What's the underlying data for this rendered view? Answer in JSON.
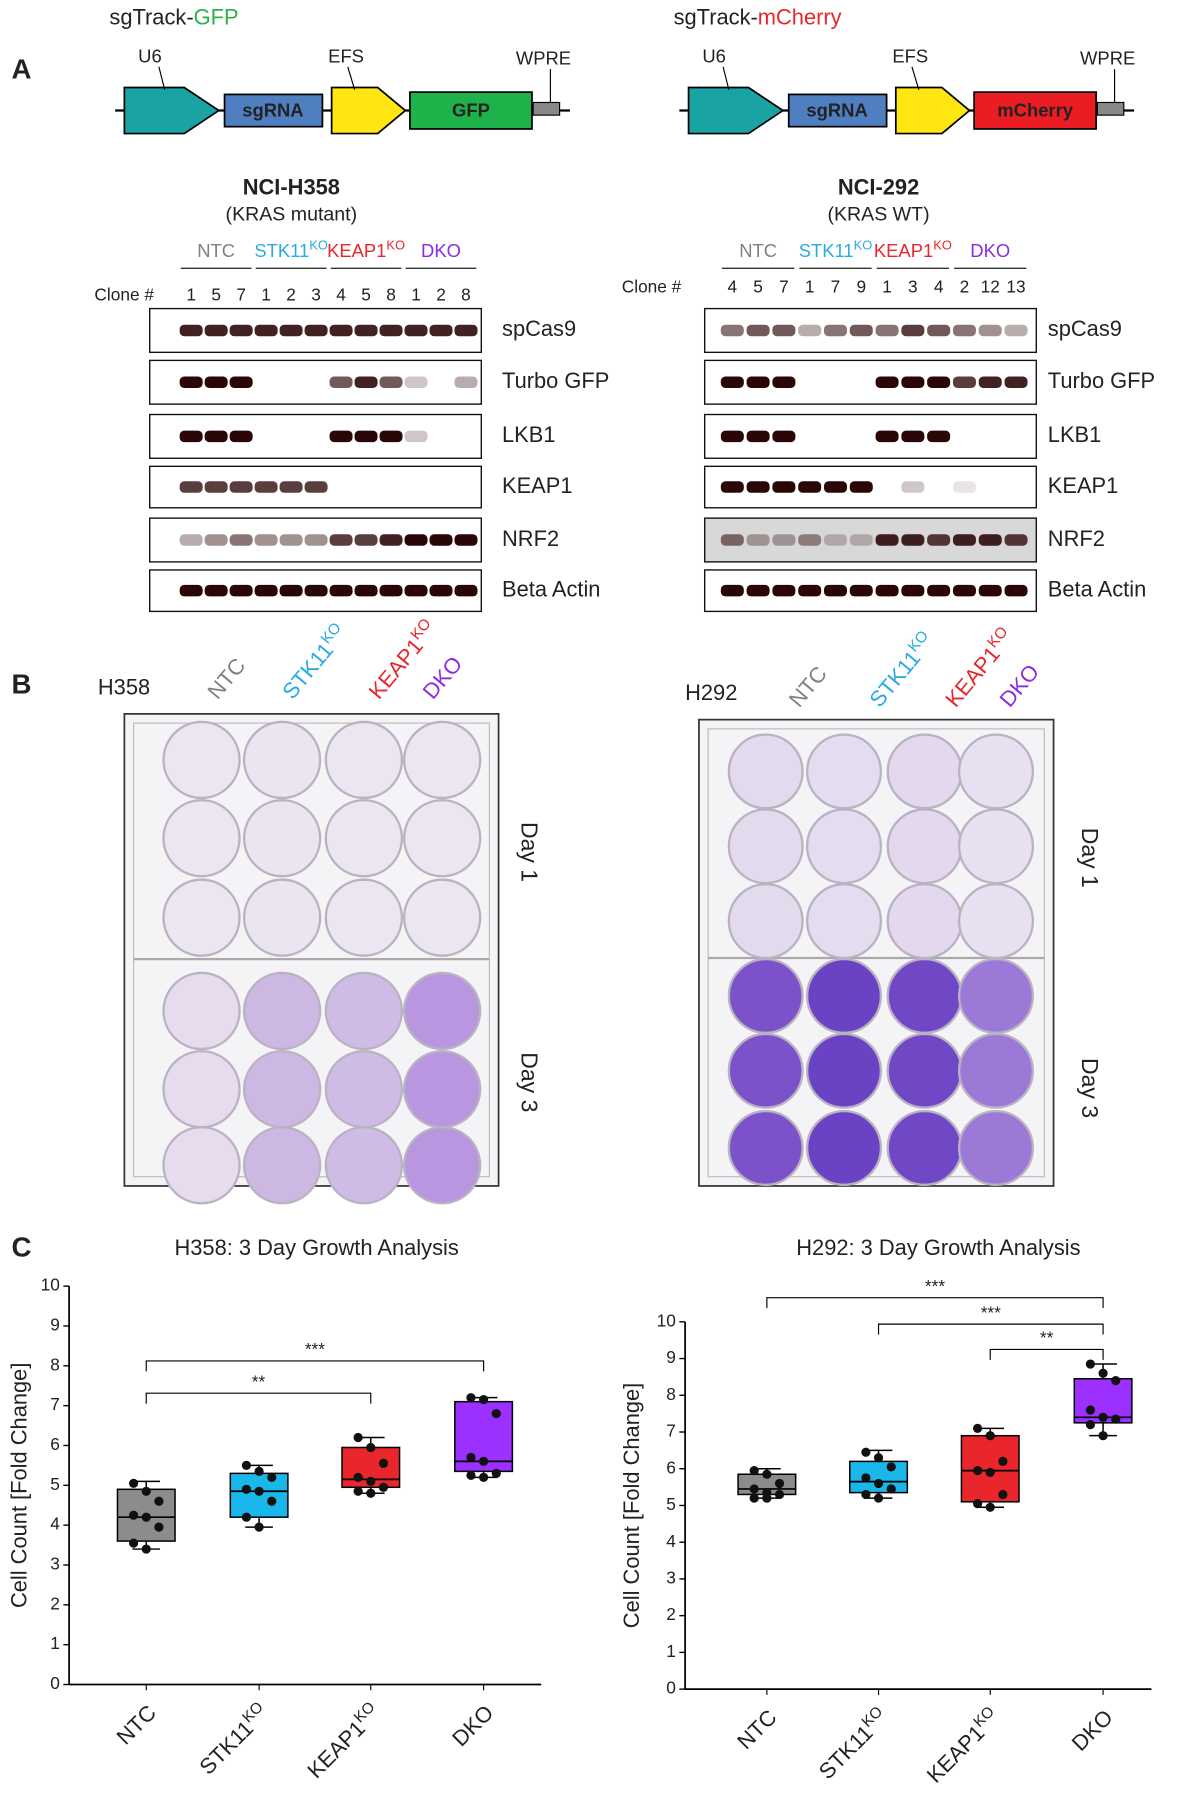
{
  "panel_labels": [
    "A",
    "B",
    "C"
  ],
  "constructs": [
    {
      "title": "sgTrack-",
      "title_highlight": "GFP",
      "highlight_color": "#2bb24c",
      "elements": [
        "U6",
        "sgRNA",
        "EFS",
        "GFP",
        "WPRE"
      ],
      "reporter_color": "#1db34a"
    },
    {
      "title": "sgTrack-",
      "title_highlight": "mCherry",
      "highlight_color": "#e8262b",
      "elements": [
        "U6",
        "sgRNA",
        "EFS",
        "mCherry",
        "WPRE"
      ],
      "reporter_color": "#ec1c24"
    }
  ],
  "blots": [
    {
      "cell_line": "NCI-H358",
      "subtitle": "(KRAS mutant)",
      "clone_header": "Clone #",
      "groups": [
        {
          "name": "NTC",
          "color": "#808080",
          "clones": [
            "1",
            "5",
            "7"
          ]
        },
        {
          "name": "STK11",
          "sup": "KO",
          "color": "#29abe2",
          "clones": [
            "1",
            "2",
            "3"
          ]
        },
        {
          "name": "KEAP1",
          "sup": "KO",
          "color": "#e8262b",
          "clones": [
            "4",
            "5",
            "8"
          ]
        },
        {
          "name": "DKO",
          "color": "#8b2be2",
          "clones": [
            "1",
            "2",
            "8"
          ]
        }
      ],
      "bands": [
        "spCas9",
        "Turbo GFP",
        "LKB1",
        "KEAP1",
        "NRF2",
        "Beta Actin"
      ]
    },
    {
      "cell_line": "NCI-292",
      "subtitle": "(KRAS WT)",
      "clone_header": "Clone #",
      "groups": [
        {
          "name": "NTC",
          "color": "#808080",
          "clones": [
            "4",
            "5",
            "7"
          ]
        },
        {
          "name": "STK11",
          "sup": "KO",
          "color": "#29abe2",
          "clones": [
            "1",
            "7",
            "9"
          ]
        },
        {
          "name": "KEAP1",
          "sup": "KO",
          "color": "#e8262b",
          "clones": [
            "1",
            "3",
            "4"
          ]
        },
        {
          "name": "DKO",
          "color": "#8b2be2",
          "clones": [
            "2",
            "12",
            "13"
          ]
        }
      ],
      "bands": [
        "spCas9",
        "Turbo GFP",
        "LKB1",
        "KEAP1",
        "NRF2",
        "Beta Actin"
      ]
    }
  ],
  "plates": [
    {
      "cell_line": "H358",
      "groups": [
        {
          "name": "NTC",
          "color": "#808080"
        },
        {
          "name": "STK11",
          "sup": "KO",
          "color": "#29abe2"
        },
        {
          "name": "KEAP1",
          "sup": "KO",
          "color": "#e8262b"
        },
        {
          "name": "DKO",
          "color": "#8b2be2"
        }
      ],
      "days": [
        "Day 1",
        "Day 3"
      ]
    },
    {
      "cell_line": "H292",
      "groups": [
        {
          "name": "NTC",
          "color": "#808080"
        },
        {
          "name": "STK11",
          "sup": "KO",
          "color": "#29abe2"
        },
        {
          "name": "KEAP1",
          "sup": "KO",
          "color": "#e8262b"
        },
        {
          "name": "DKO",
          "color": "#8b2be2"
        }
      ],
      "days": [
        "Day 1",
        "Day 3"
      ]
    }
  ],
  "chart_data": [
    {
      "type": "box",
      "title": "H358: 3 Day Growth Analysis",
      "y_label": "Cell Count [Fold Change]",
      "categories": [
        "NTC",
        "STK11",
        "KEAP1",
        "DKO"
      ],
      "superscripts": {
        "1": "KO",
        "2": "KO"
      },
      "ylim": [
        0,
        10
      ],
      "yticks": [
        0,
        1,
        2,
        3,
        4,
        5,
        6,
        7,
        8,
        9,
        10
      ],
      "boxes": [
        {
          "color": "#8c8c8c",
          "min": 3.4,
          "q1": 3.6,
          "median": 4.2,
          "q3": 4.9,
          "max": 5.1,
          "points": [
            5.05,
            4.85,
            4.6,
            4.25,
            4.2,
            3.95,
            3.55,
            3.4
          ]
        },
        {
          "color": "#1ab7ea",
          "min": 3.95,
          "q1": 4.2,
          "median": 4.85,
          "q3": 5.3,
          "max": 5.5,
          "points": [
            5.5,
            5.35,
            5.2,
            4.9,
            4.85,
            4.6,
            4.2,
            3.95
          ]
        },
        {
          "color": "#e8262b",
          "min": 4.8,
          "q1": 4.95,
          "median": 5.15,
          "q3": 5.95,
          "max": 6.2,
          "points": [
            6.2,
            5.95,
            5.55,
            5.2,
            5.1,
            4.95,
            4.85,
            4.8
          ]
        },
        {
          "color": "#9b30ff",
          "min": 5.2,
          "q1": 5.35,
          "median": 5.6,
          "q3": 7.1,
          "max": 7.2,
          "points": [
            7.2,
            7.15,
            6.8,
            5.7,
            5.6,
            5.3,
            5.25,
            5.2
          ]
        }
      ],
      "significance": [
        {
          "from": 0,
          "to": 2,
          "label": "**"
        },
        {
          "from": 0,
          "to": 3,
          "label": "***"
        }
      ]
    },
    {
      "type": "box",
      "title": "H292: 3 Day Growth Analysis",
      "y_label": "Cell Count [Fold Change]",
      "categories": [
        "NTC",
        "STK11",
        "KEAP1",
        "DKO"
      ],
      "superscripts": {
        "1": "KO",
        "2": "KO"
      },
      "ylim": [
        0,
        10
      ],
      "yticks": [
        0,
        1,
        2,
        3,
        4,
        5,
        6,
        7,
        8,
        9,
        10
      ],
      "boxes": [
        {
          "color": "#8c8c8c",
          "min": 5.2,
          "q1": 5.3,
          "median": 5.45,
          "q3": 5.85,
          "max": 6.0,
          "points": [
            5.95,
            5.85,
            5.6,
            5.45,
            5.35,
            5.3,
            5.2,
            5.2
          ]
        },
        {
          "color": "#1ab7ea",
          "min": 5.2,
          "q1": 5.35,
          "median": 5.65,
          "q3": 6.2,
          "max": 6.5,
          "points": [
            6.45,
            6.3,
            6.05,
            5.75,
            5.6,
            5.45,
            5.3,
            5.2
          ]
        },
        {
          "color": "#e8262b",
          "min": 4.95,
          "q1": 5.1,
          "median": 5.95,
          "q3": 6.9,
          "max": 7.1,
          "points": [
            7.1,
            6.9,
            6.2,
            5.95,
            5.9,
            5.3,
            5.05,
            4.95
          ]
        },
        {
          "color": "#9b30ff",
          "min": 6.9,
          "q1": 7.25,
          "median": 7.4,
          "q3": 8.45,
          "max": 8.85,
          "points": [
            8.85,
            8.6,
            8.4,
            7.6,
            7.4,
            7.35,
            7.2,
            6.9
          ]
        }
      ],
      "significance": [
        {
          "from": 0,
          "to": 3,
          "label": "***"
        },
        {
          "from": 1,
          "to": 3,
          "label": "***"
        },
        {
          "from": 2,
          "to": 3,
          "label": "**"
        }
      ]
    }
  ]
}
